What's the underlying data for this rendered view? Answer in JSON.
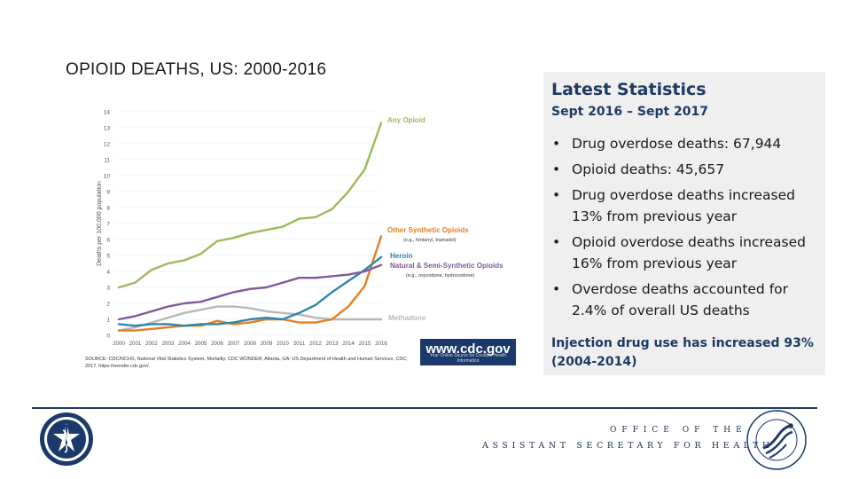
{
  "slide": {
    "title": "OPIOID DEATHS, US:  2000-2016"
  },
  "chart_data": {
    "type": "line",
    "title": "",
    "xlabel": "",
    "ylabel": "Deaths per 100,000 population",
    "x": [
      "2000",
      "2001",
      "2002",
      "2003",
      "2004",
      "2005",
      "2006",
      "2007",
      "2008",
      "2009",
      "2010",
      "2011",
      "2012",
      "2013",
      "2014",
      "2015",
      "2016"
    ],
    "ylim": [
      0,
      14
    ],
    "yticks": [
      "0",
      "1",
      "2",
      "3",
      "4",
      "5",
      "6",
      "7",
      "8",
      "9",
      "10",
      "11",
      "12",
      "13",
      "14"
    ],
    "series": [
      {
        "name": "Any Opioid",
        "color": "#9bbb59",
        "values": [
          3.0,
          3.3,
          4.1,
          4.5,
          4.7,
          5.1,
          5.9,
          6.1,
          6.4,
          6.6,
          6.8,
          7.3,
          7.4,
          7.9,
          9.0,
          10.4,
          13.3
        ]
      },
      {
        "name": "Other Synthetic Opioids",
        "sublabel": "(e.g., fentanyl, tramadol)",
        "color": "#e67e22",
        "values": [
          0.3,
          0.3,
          0.4,
          0.5,
          0.6,
          0.6,
          0.9,
          0.7,
          0.8,
          1.0,
          1.0,
          0.8,
          0.8,
          1.0,
          1.8,
          3.1,
          6.2
        ]
      },
      {
        "name": "Heroin",
        "sublabel": "",
        "color": "#2e86a8",
        "values": [
          0.7,
          0.6,
          0.7,
          0.7,
          0.6,
          0.7,
          0.7,
          0.8,
          1.0,
          1.1,
          1.0,
          1.4,
          1.9,
          2.7,
          3.4,
          4.1,
          4.9
        ]
      },
      {
        "name": "Natural & Semi-Synthetic Opioids",
        "sublabel": "(e.g., oxycodone, hydrocodone)",
        "color": "#7e5a9b",
        "values": [
          1.0,
          1.2,
          1.5,
          1.8,
          2.0,
          2.1,
          2.4,
          2.7,
          2.9,
          3.0,
          3.3,
          3.6,
          3.6,
          3.7,
          3.8,
          4.0,
          4.4
        ]
      },
      {
        "name": "Methadone",
        "sublabel": "",
        "color": "#b8b8b8",
        "values": [
          0.3,
          0.5,
          0.8,
          1.1,
          1.4,
          1.6,
          1.8,
          1.8,
          1.7,
          1.5,
          1.4,
          1.3,
          1.1,
          1.0,
          1.0,
          1.0,
          1.0
        ]
      }
    ]
  },
  "badge": {
    "url": "www.cdc.gov",
    "tagline": "Your Online Source for Credible Health Information"
  },
  "source": {
    "text": "SOURCE: CDC/NCHS, National Vital Statistics System, Mortality. CDC WONDER, Atlanta, GA: US Department of Health and Human Services, CDC; 2017. https://wonder.cdc.gov/."
  },
  "stats": {
    "title": "Latest Statistics",
    "period": "Sept 2016 – Sept 2017",
    "bullet_symbol": "•",
    "items": [
      "Drug overdose deaths:  67,944",
      "Opioid deaths:  45,657",
      "Drug overdose deaths increased 13% from previous year",
      "Opioid overdose deaths increased 16% from previous year",
      "Overdose deaths accounted for 2.4%  of overall US deaths"
    ],
    "footnote": "Injection drug use has increased 93% (2004-2014)"
  },
  "footer": {
    "line1": "OFFICE OF THE",
    "line2": "ASSISTANT SECRETARY FOR HEALTH",
    "left_seal_icon": "us-public-health-service-seal-icon",
    "right_seal_icon": "hhs-seal-icon",
    "accent_color": "#1b3a6b"
  }
}
